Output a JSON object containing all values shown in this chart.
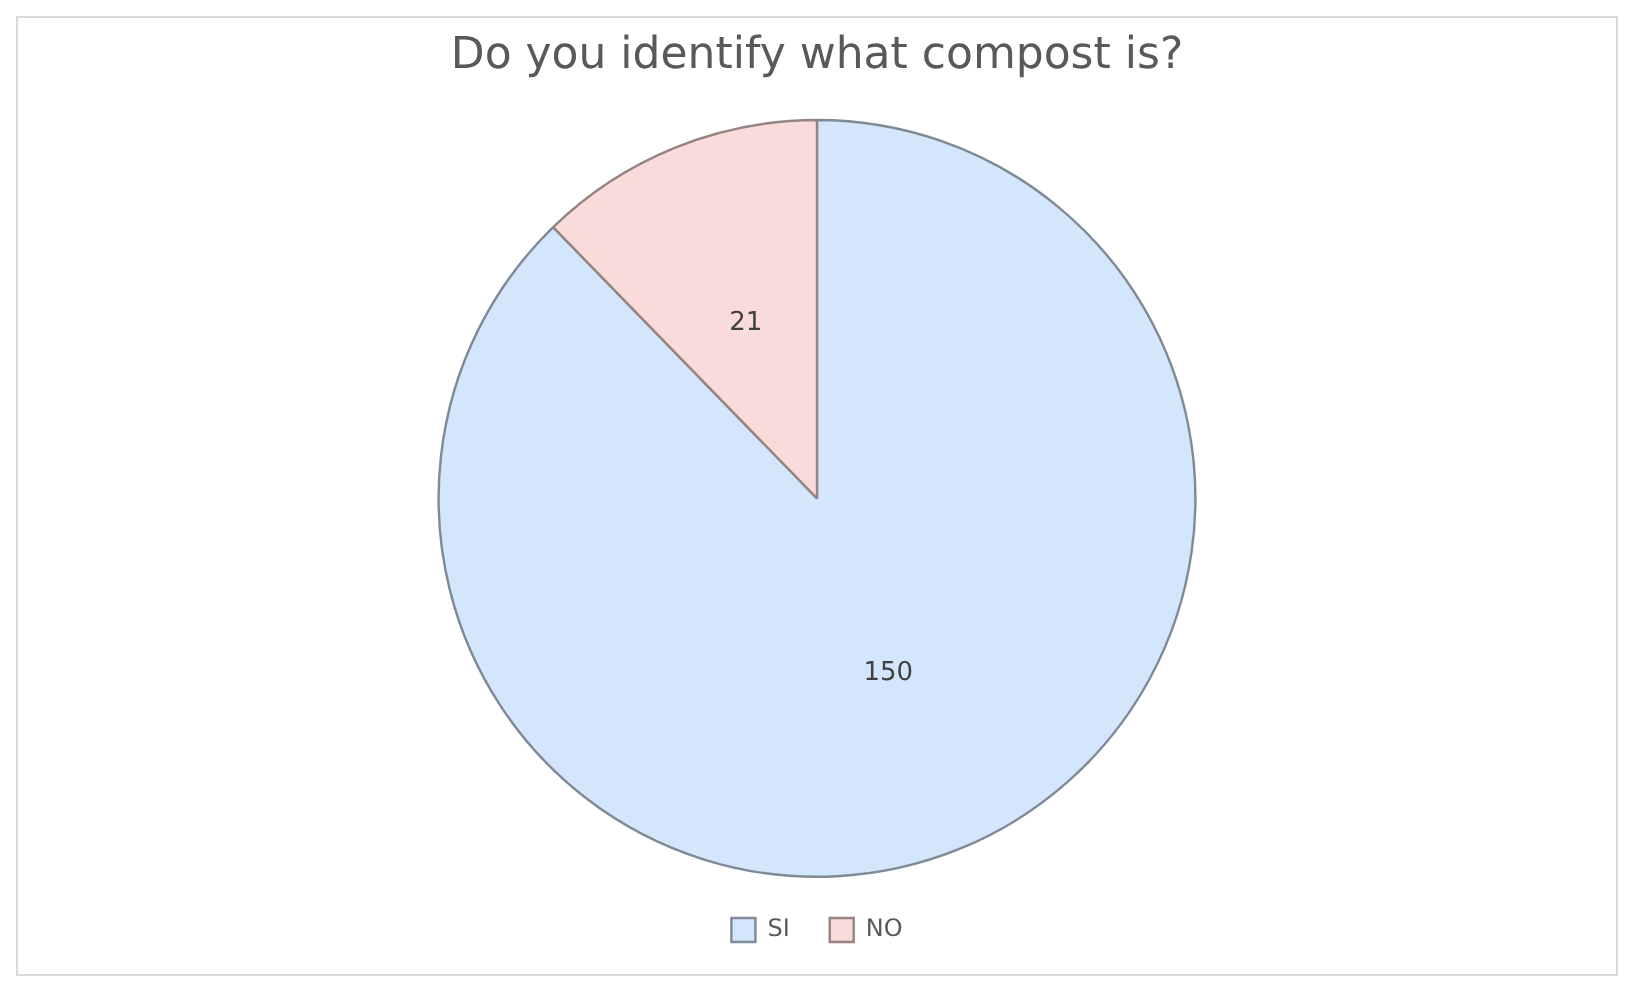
{
  "chart_data": {
    "type": "pie",
    "title": "Do you identify what compost is?",
    "categories": [
      "SI",
      "NO"
    ],
    "values": [
      150,
      21
    ],
    "colors": [
      "#d4e6fb",
      "#f9dcd9"
    ],
    "data_labels": true,
    "legend": "bottom"
  }
}
